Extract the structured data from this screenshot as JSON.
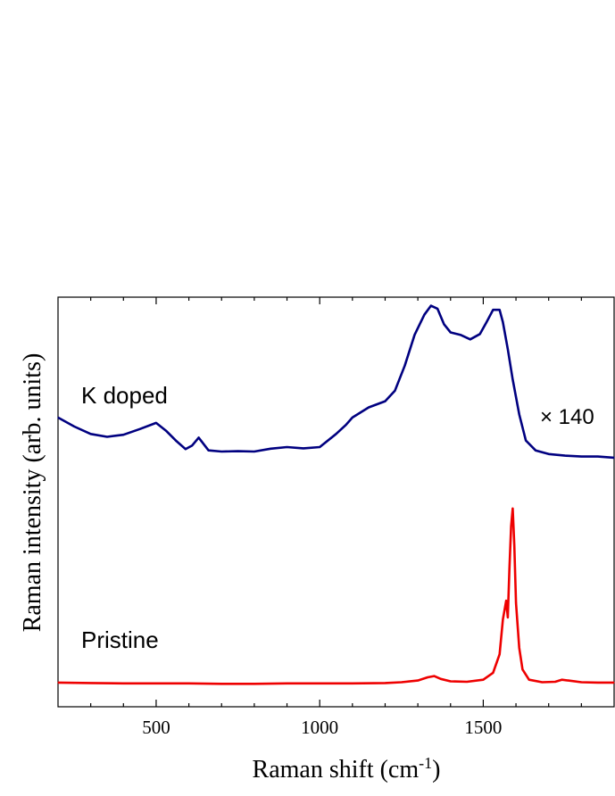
{
  "chart_data": {
    "type": "line",
    "title": "",
    "xlabel": "Raman shift (cm",
    "xlabel_sup": "-1",
    "xlabel_close": ")",
    "ylabel": "Raman intensity (arb. units)",
    "xlim": [
      200,
      1900
    ],
    "ylim": [
      0,
      100
    ],
    "x_ticks_major": [
      500,
      1000,
      1500
    ],
    "x_ticks_minor": [
      300,
      400,
      600,
      700,
      800,
      900,
      1100,
      1200,
      1300,
      1400,
      1600,
      1700,
      1800
    ],
    "y_ticks": [],
    "grid": false,
    "legend": "none",
    "annotations": {
      "k_doped": "K doped",
      "pristine": "Pristine",
      "scale_factor": "× 140"
    },
    "series": [
      {
        "name": "K doped",
        "color": "#000080",
        "x": [
          200,
          250,
          300,
          350,
          400,
          450,
          500,
          530,
          560,
          590,
          610,
          630,
          660,
          700,
          750,
          800,
          850,
          900,
          950,
          1000,
          1050,
          1080,
          1100,
          1150,
          1200,
          1230,
          1260,
          1290,
          1320,
          1340,
          1360,
          1380,
          1400,
          1430,
          1460,
          1490,
          1510,
          1530,
          1550,
          1560,
          1575,
          1590,
          1610,
          1630,
          1660,
          1700,
          1750,
          1800,
          1850,
          1900
        ],
        "y": [
          70.6,
          68.4,
          66.6,
          65.9,
          66.4,
          67.8,
          69.3,
          67.4,
          65.0,
          62.9,
          63.8,
          65.7,
          62.6,
          62.3,
          62.4,
          62.3,
          63.0,
          63.4,
          63.1,
          63.4,
          66.6,
          68.8,
          70.6,
          73.1,
          74.6,
          77.2,
          83.3,
          90.8,
          95.7,
          97.9,
          97.2,
          93.4,
          91.4,
          90.8,
          89.7,
          91.0,
          93.9,
          96.9,
          96.9,
          93.9,
          87.3,
          79.9,
          71.4,
          65.0,
          62.6,
          61.7,
          61.3,
          61.1,
          61.1,
          60.8
        ]
      },
      {
        "name": "Pristine",
        "color": "#ee0000",
        "x": [
          200,
          300,
          400,
          500,
          600,
          700,
          800,
          900,
          1000,
          1100,
          1200,
          1250,
          1300,
          1330,
          1350,
          1370,
          1400,
          1450,
          1500,
          1530,
          1550,
          1560,
          1570,
          1575,
          1580,
          1585,
          1590,
          1595,
          1600,
          1610,
          1620,
          1640,
          1680,
          1720,
          1740,
          1760,
          1800,
          1850,
          1900
        ],
        "y": [
          5.9,
          5.8,
          5.7,
          5.7,
          5.7,
          5.6,
          5.6,
          5.7,
          5.7,
          5.7,
          5.8,
          6.0,
          6.4,
          7.2,
          7.5,
          6.8,
          6.2,
          6.1,
          6.6,
          8.3,
          12.8,
          21.3,
          25.9,
          21.8,
          33.6,
          44.0,
          48.4,
          39.4,
          25.3,
          14.4,
          9.1,
          6.6,
          6.0,
          6.1,
          6.6,
          6.4,
          6.0,
          5.9,
          5.9
        ]
      }
    ]
  }
}
